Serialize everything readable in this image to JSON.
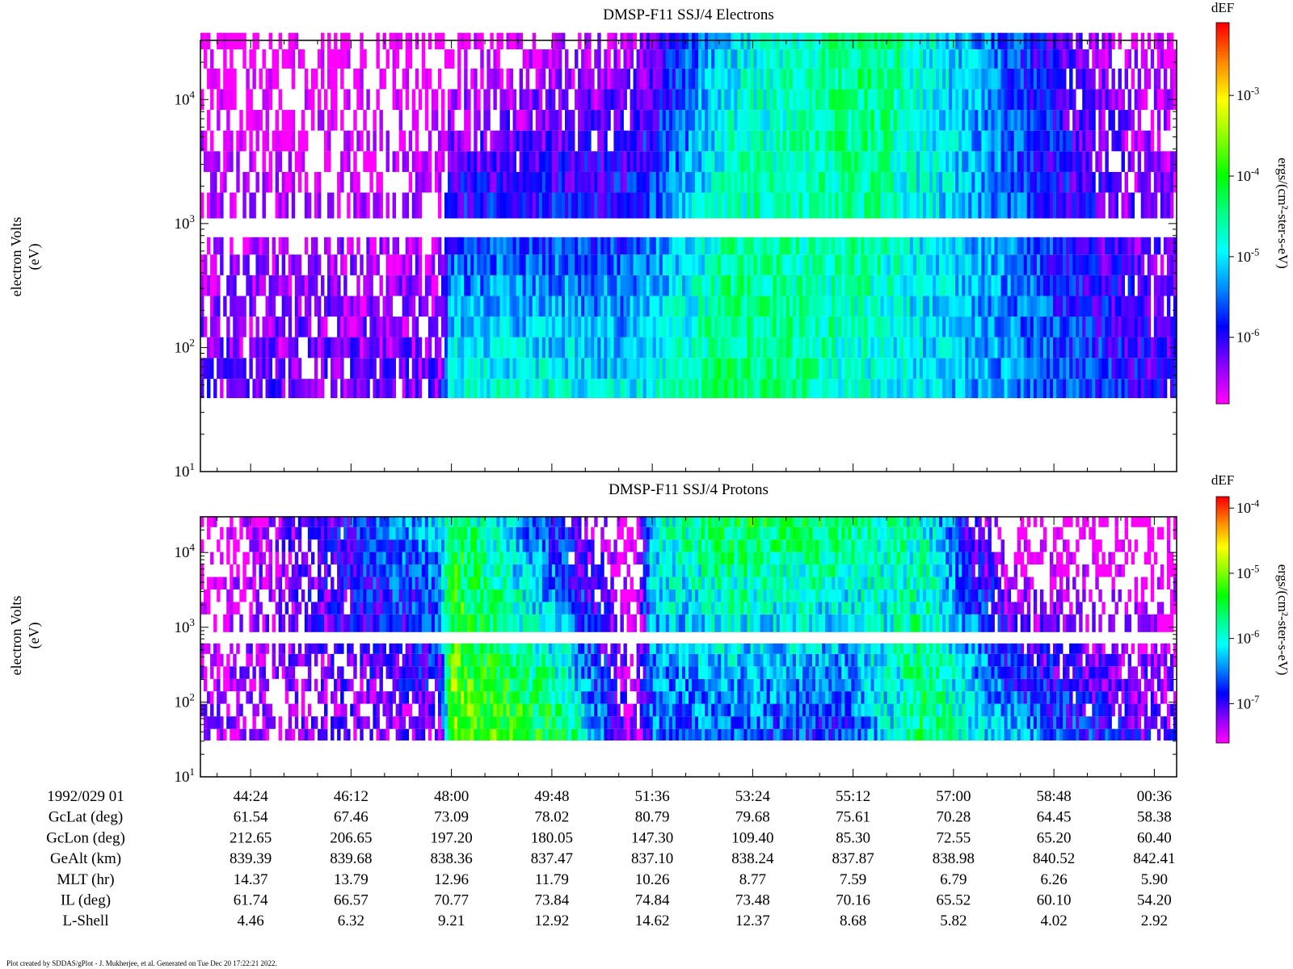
{
  "chart_data": [
    {
      "type": "heatmap",
      "title": "DMSP-F11 SSJ/4 Electrons",
      "ylabel": "electron Volts",
      "yunit": "(eV)",
      "yscale": "log",
      "ylim": [
        10,
        30000
      ],
      "yticks": [
        {
          "base": "10",
          "exp": "1"
        },
        {
          "base": "10",
          "exp": "2"
        },
        {
          "base": "10",
          "exp": "3"
        },
        {
          "base": "10",
          "exp": "4"
        }
      ],
      "colorbar": {
        "title": "dEF",
        "label": "ergs/(cm²-ster-s-eV)",
        "scale": "log",
        "range": [
          1.5e-07,
          0.008
        ],
        "ticks": [
          {
            "base": "10",
            "exp": "-3"
          },
          {
            "base": "10",
            "exp": "-4"
          },
          {
            "base": "10",
            "exp": "-5"
          },
          {
            "base": "10",
            "exp": "-6"
          }
        ],
        "colors": [
          "#ff00ff",
          "#8800ff",
          "#0000ff",
          "#0088ff",
          "#00ffff",
          "#00ff88",
          "#00ff00",
          "#88ff00",
          "#ffff00",
          "#ff8800",
          "#ff0000"
        ]
      },
      "energy_channels_eV": [
        46,
        68,
        100,
        147,
        215,
        316,
        464,
        681,
        1000,
        1470,
        2150,
        3160,
        4640,
        6810,
        10000,
        14700,
        21500,
        30000
      ],
      "log_flux_profile": {
        "note_times_min": [
          43.5,
          47.8,
          48.0,
          51.2,
          53.0,
          55.5,
          57.3,
          59.5,
          60.8
        ],
        "low_energy": [
          -6.3,
          -6.3,
          -4.7,
          -5.0,
          -4.3,
          -4.8,
          -5.2,
          -5.7,
          -6.1
        ],
        "high_energy": [
          -7.0,
          -7.0,
          -7.0,
          -6.6,
          -5.0,
          -4.3,
          -5.2,
          -6.5,
          -6.8
        ]
      }
    },
    {
      "type": "heatmap",
      "title": "DMSP-F11 SSJ/4 Protons",
      "ylabel": "electron Volts",
      "yunit": "(eV)",
      "yscale": "log",
      "ylim": [
        10,
        30000
      ],
      "yticks": [
        {
          "base": "10",
          "exp": "1"
        },
        {
          "base": "10",
          "exp": "2"
        },
        {
          "base": "10",
          "exp": "3"
        },
        {
          "base": "10",
          "exp": "4"
        }
      ],
      "colorbar": {
        "title": "dEF",
        "label": "ergs/(cm²-ster-s-eV)",
        "scale": "log",
        "range": [
          2.5e-08,
          0.00015
        ],
        "ticks": [
          {
            "base": "10",
            "exp": "-4"
          },
          {
            "base": "10",
            "exp": "-5"
          },
          {
            "base": "10",
            "exp": "-6"
          },
          {
            "base": "10",
            "exp": "-7"
          }
        ],
        "colors": [
          "#ff00ff",
          "#8800ff",
          "#0000ff",
          "#0088ff",
          "#00ffff",
          "#00ff88",
          "#00ff00",
          "#88ff00",
          "#ffff00",
          "#ff8800",
          "#ff0000"
        ]
      },
      "energy_channels_eV": [
        36,
        53,
        78,
        115,
        168,
        247,
        363,
        533,
        783,
        1230,
        1800,
        2640,
        3880,
        5700,
        8380,
        12300,
        18000,
        26500
      ],
      "log_flux_profile": {
        "note_times_min": [
          43.5,
          47.8,
          48.0,
          50.0,
          51.3,
          51.6,
          53.0,
          55.0,
          56.5,
          58.0,
          60.8
        ],
        "low_energy": [
          -7.4,
          -7.3,
          -5.0,
          -5.5,
          -7.5,
          -6.6,
          -6.6,
          -6.8,
          -5.6,
          -6.3,
          -7.2
        ],
        "high_energy": [
          -7.9,
          -6.2,
          -5.5,
          -7.0,
          -7.9,
          -6.0,
          -5.5,
          -5.6,
          -6.0,
          -7.9,
          -7.9
        ]
      }
    }
  ],
  "time_axis": {
    "label": "1992/029 01",
    "ticks": [
      "44:24",
      "46:12",
      "48:00",
      "49:48",
      "51:36",
      "53:24",
      "55:12",
      "57:00",
      "58:48",
      "00:36"
    ],
    "tick_minutes": [
      44.4,
      46.2,
      48.0,
      49.8,
      51.6,
      53.4,
      55.2,
      57.0,
      58.8,
      60.6
    ],
    "range_minutes": [
      43.5,
      61.0
    ]
  },
  "ephemeris": [
    {
      "label": "GcLat (deg)",
      "values": [
        "61.54",
        "67.46",
        "73.09",
        "78.02",
        "80.79",
        "79.68",
        "75.61",
        "70.28",
        "64.45",
        "58.38"
      ]
    },
    {
      "label": "GcLon (deg)",
      "values": [
        "212.65",
        "206.65",
        "197.20",
        "180.05",
        "147.30",
        "109.40",
        "85.30",
        "72.55",
        "65.20",
        "60.40"
      ]
    },
    {
      "label": "GeAlt (km)",
      "values": [
        "839.39",
        "839.68",
        "838.36",
        "837.47",
        "837.10",
        "838.24",
        "837.87",
        "838.98",
        "840.52",
        "842.41"
      ]
    },
    {
      "label": "MLT (hr)",
      "values": [
        "14.37",
        "13.79",
        "12.96",
        "11.79",
        "10.26",
        "8.77",
        "7.59",
        "6.79",
        "6.26",
        "5.90"
      ]
    },
    {
      "label": "IL (deg)",
      "values": [
        "61.74",
        "66.57",
        "70.77",
        "73.84",
        "74.84",
        "73.48",
        "70.16",
        "65.52",
        "60.10",
        "54.20"
      ]
    },
    {
      "label": "L-Shell",
      "values": [
        "4.46",
        "6.32",
        "9.21",
        "12.92",
        "14.62",
        "12.37",
        "8.68",
        "5.82",
        "4.02",
        "2.92"
      ]
    }
  ],
  "footer": "Plot created by SDDAS/gPlot - J. Mukherjee, et al.  Generated on Tue Dec 20 17:22:21 2022."
}
